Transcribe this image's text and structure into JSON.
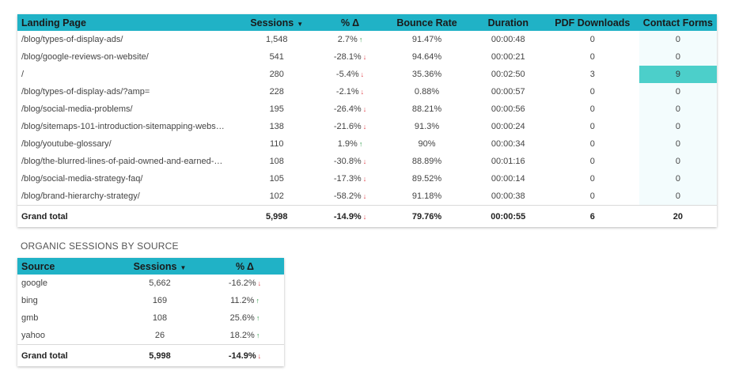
{
  "landing_table": {
    "headers": {
      "landing_page": "Landing Page",
      "sessions": "Sessions",
      "pct_delta": "% Δ",
      "bounce_rate": "Bounce Rate",
      "duration": "Duration",
      "pdf_downloads": "PDF Downloads",
      "contact_forms": "Contact Forms"
    },
    "sort_indicator": "▼",
    "rows": [
      {
        "page": "/blog/types-of-display-ads/",
        "sessions": "1,548",
        "delta": "2.7%",
        "trend": "up",
        "bounce": "91.47%",
        "duration": "00:00:48",
        "pdf": "0",
        "forms": "0"
      },
      {
        "page": "/blog/google-reviews-on-website/",
        "sessions": "541",
        "delta": "-28.1%",
        "trend": "down",
        "bounce": "94.64%",
        "duration": "00:00:21",
        "pdf": "0",
        "forms": "0"
      },
      {
        "page": "/",
        "sessions": "280",
        "delta": "-5.4%",
        "trend": "down",
        "bounce": "35.36%",
        "duration": "00:02:50",
        "pdf": "3",
        "forms": "9"
      },
      {
        "page": "/blog/types-of-display-ads/?amp=",
        "sessions": "228",
        "delta": "-2.1%",
        "trend": "down",
        "bounce": "0.88%",
        "duration": "00:00:57",
        "pdf": "0",
        "forms": "0"
      },
      {
        "page": "/blog/social-media-problems/",
        "sessions": "195",
        "delta": "-26.4%",
        "trend": "down",
        "bounce": "88.21%",
        "duration": "00:00:56",
        "pdf": "0",
        "forms": "0"
      },
      {
        "page": "/blog/sitemaps-101-introduction-sitemapping-webs…",
        "sessions": "138",
        "delta": "-21.6%",
        "trend": "down",
        "bounce": "91.3%",
        "duration": "00:00:24",
        "pdf": "0",
        "forms": "0"
      },
      {
        "page": "/blog/youtube-glossary/",
        "sessions": "110",
        "delta": "1.9%",
        "trend": "up",
        "bounce": "90%",
        "duration": "00:00:34",
        "pdf": "0",
        "forms": "0"
      },
      {
        "page": "/blog/the-blurred-lines-of-paid-owned-and-earned-…",
        "sessions": "108",
        "delta": "-30.8%",
        "trend": "down",
        "bounce": "88.89%",
        "duration": "00:01:16",
        "pdf": "0",
        "forms": "0"
      },
      {
        "page": "/blog/social-media-strategy-faq/",
        "sessions": "105",
        "delta": "-17.3%",
        "trend": "down",
        "bounce": "89.52%",
        "duration": "00:00:14",
        "pdf": "0",
        "forms": "0"
      },
      {
        "page": "/blog/brand-hierarchy-strategy/",
        "sessions": "102",
        "delta": "-58.2%",
        "trend": "down",
        "bounce": "91.18%",
        "duration": "00:00:38",
        "pdf": "0",
        "forms": "0"
      }
    ],
    "total": {
      "label": "Grand total",
      "sessions": "5,998",
      "delta": "-14.9%",
      "trend": "down",
      "bounce": "79.76%",
      "duration": "00:00:55",
      "pdf": "6",
      "forms": "20"
    }
  },
  "organic": {
    "title": "ORGANIC SESSIONS BY SOURCE",
    "headers": {
      "source": "Source",
      "sessions": "Sessions",
      "pct_delta": "% Δ"
    },
    "sort_indicator": "▼",
    "rows": [
      {
        "source": "google",
        "sessions": "5,662",
        "delta": "-16.2%",
        "trend": "down"
      },
      {
        "source": "bing",
        "sessions": "169",
        "delta": "11.2%",
        "trend": "up"
      },
      {
        "source": "gmb",
        "sessions": "108",
        "delta": "25.6%",
        "trend": "up"
      },
      {
        "source": "yahoo",
        "sessions": "26",
        "delta": "18.2%",
        "trend": "up"
      }
    ],
    "total": {
      "label": "Grand total",
      "sessions": "5,998",
      "delta": "-14.9%",
      "trend": "down"
    }
  },
  "trend_glyphs": {
    "up": "↑",
    "down": "↓"
  },
  "colors": {
    "header": "#20b2c6",
    "highlight": "#4ccfca",
    "up": "#2e9a48",
    "down": "#e0454d"
  }
}
